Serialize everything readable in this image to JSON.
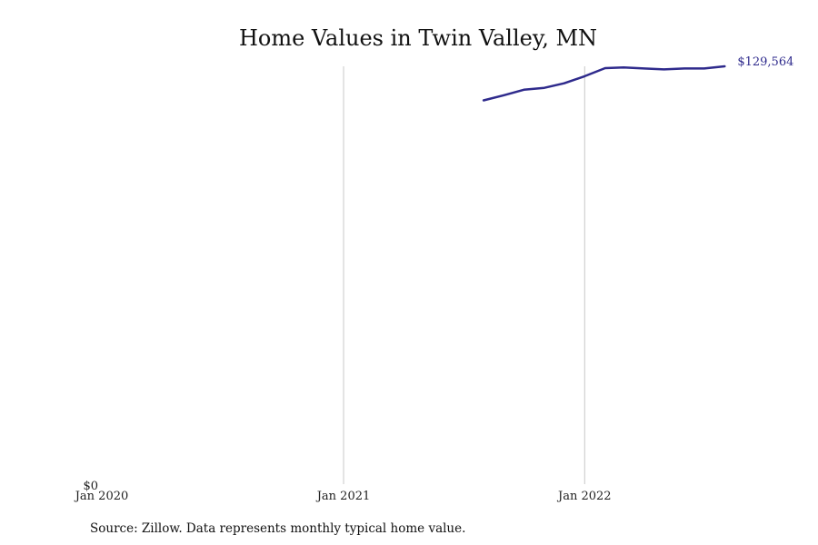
{
  "chart_data": {
    "type": "line",
    "title": "Home Values in Twin Valley, MN",
    "xlabel": "",
    "ylabel": "",
    "x_ticks": [
      {
        "date": "2020-01-01",
        "label": "Jan 2020"
      },
      {
        "date": "2021-01-01",
        "label": "Jan 2021"
      },
      {
        "date": "2022-01-01",
        "label": "Jan 2022"
      }
    ],
    "y_ticks": [
      {
        "value": 0,
        "label": "$0"
      }
    ],
    "xlim": [
      "2020-01-01",
      "2022-10-01"
    ],
    "ylim": [
      0,
      129564
    ],
    "grid": "vertical",
    "series": [
      {
        "name": "",
        "color": "#2e2a8c",
        "x": [
          "2021-08-01",
          "2021-09-01",
          "2021-10-01",
          "2021-11-01",
          "2021-12-01",
          "2022-01-01",
          "2022-02-01",
          "2022-03-01",
          "2022-04-01",
          "2022-05-01",
          "2022-06-01",
          "2022-07-01",
          "2022-08-01"
        ],
        "values": [
          119000,
          120600,
          122300,
          122900,
          124300,
          126500,
          129000,
          129200,
          128900,
          128600,
          128900,
          128900,
          129564
        ],
        "end_label": "$129,564"
      }
    ],
    "source": "Source: Zillow. Data represents monthly typical home value."
  }
}
